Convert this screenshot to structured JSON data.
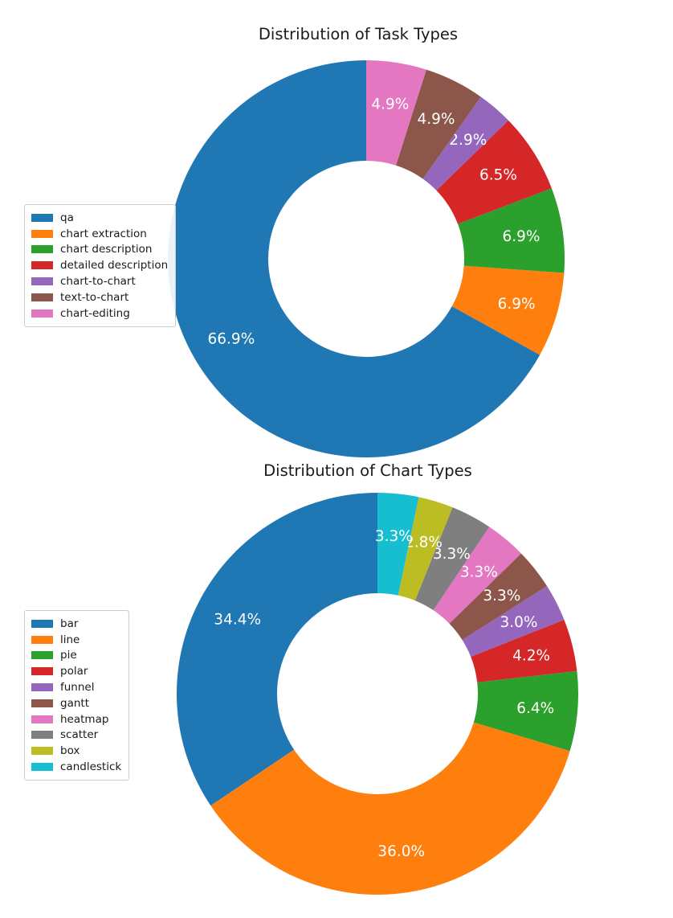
{
  "page": {
    "background_color": "#ffffff",
    "text_color": "#1a1a1a",
    "pct_label_color": "#ffffff"
  },
  "charts": [
    {
      "title": "Distribution of Task Types",
      "chart_data": {
        "type": "pie",
        "subtype": "donut",
        "start_angle": 90,
        "direction": "counterclockwise",
        "legend_position": "left",
        "categories": [
          "qa",
          "chart extraction",
          "chart description",
          "detailed description",
          "chart-to-chart",
          "text-to-chart",
          "chart-editing"
        ],
        "values": [
          66.9,
          6.9,
          6.9,
          6.5,
          2.9,
          4.9,
          4.9
        ],
        "labels": [
          "66.9%",
          "6.9%",
          "6.9%",
          "6.5%",
          "2.9%",
          "4.9%",
          "4.9%"
        ],
        "colors": [
          "#1f77b4",
          "#ff7f0e",
          "#2ca02c",
          "#d62728",
          "#9467bd",
          "#8c564b",
          "#e377c2"
        ]
      }
    },
    {
      "title": "Distribution of Chart Types",
      "chart_data": {
        "type": "pie",
        "subtype": "donut",
        "start_angle": 90,
        "direction": "counterclockwise",
        "legend_position": "left",
        "categories": [
          "bar",
          "line",
          "pie",
          "polar",
          "funnel",
          "gantt",
          "heatmap",
          "scatter",
          "box",
          "candlestick"
        ],
        "values": [
          34.4,
          36.0,
          6.4,
          4.2,
          3.0,
          3.3,
          3.3,
          3.3,
          2.8,
          3.3
        ],
        "labels": [
          "34.4%",
          "36.0%",
          "6.4%",
          "4.2%",
          "3.0%",
          "3.3%",
          "3.3%",
          "3.3%",
          "2.8%",
          "3.3%"
        ],
        "colors": [
          "#1f77b4",
          "#ff7f0e",
          "#2ca02c",
          "#d62728",
          "#9467bd",
          "#8c564b",
          "#e377c2",
          "#7f7f7f",
          "#bcbd22",
          "#17becf"
        ]
      }
    }
  ]
}
